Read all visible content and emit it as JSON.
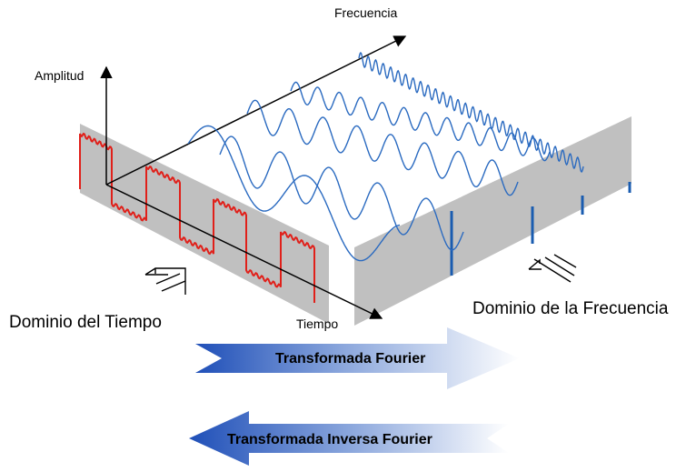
{
  "labels": {
    "amplitude_axis": "Amplitud",
    "frequency_axis": "Frecuencia",
    "time_axis": "Tiempo",
    "time_domain": "Dominio del Tiempo",
    "frequency_domain": "Dominio de la Frecuencia"
  },
  "arrows": {
    "forward": "Transformada Fourier",
    "inverse": "Transformada Inversa Fourier"
  },
  "colors": {
    "panel": "#c0c0c0",
    "square_wave": "#e0201a",
    "sine_waves": "#2a6ac0",
    "spectrum_lines": "#1a5cb0",
    "axes": "#000000",
    "arrow_dark": "#1f4fb8",
    "arrow_light": "#ffffff"
  },
  "icons": {
    "time_view": "double-arrow-viewpoint-icon",
    "frequency_view": "double-arrow-viewpoint-icon"
  }
}
